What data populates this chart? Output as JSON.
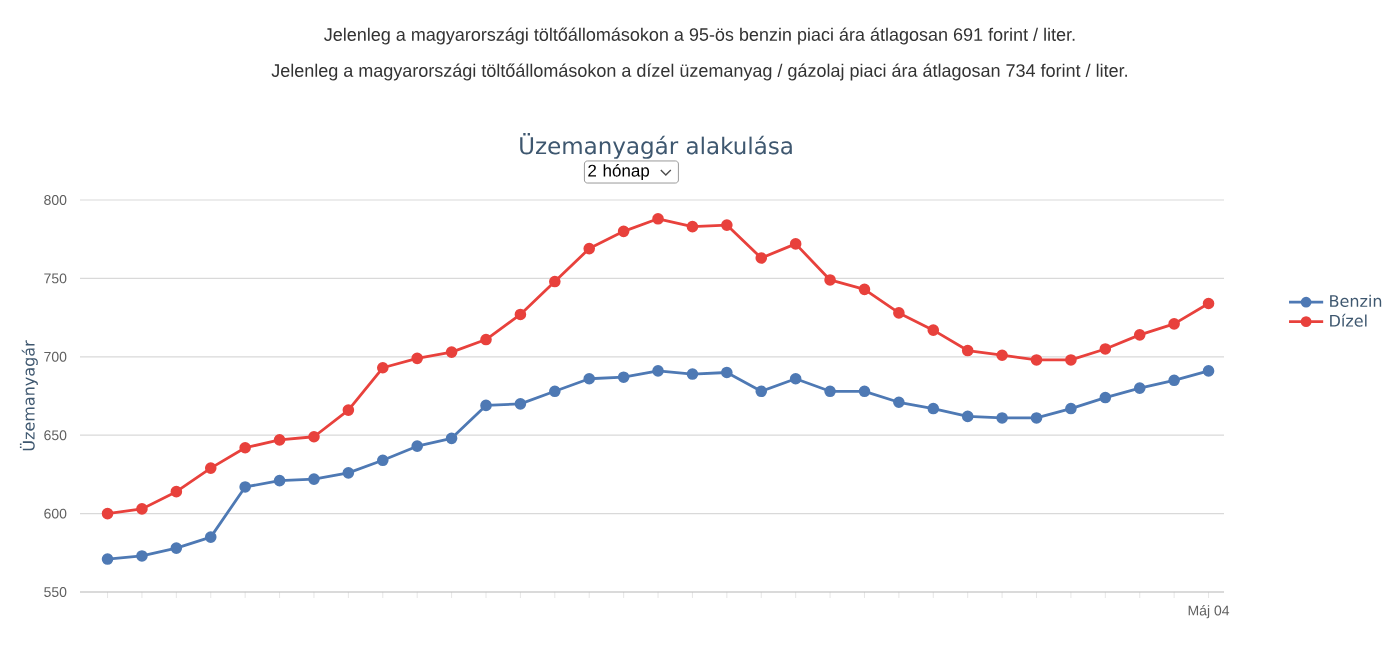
{
  "chart_data": {
    "type": "line",
    "title": "Üzemanyagár alakulása",
    "ylabel": "Üzemanyagár",
    "annotations": [
      "Jelenleg a magyarországi töltőállomásokon a 95-ös benzin piaci ára átlagosan 691 forint / liter.",
      "Jelenleg a magyarországi töltőállomásokon a dízel üzemanyag / gázolaj piaci ára átlagosan 734 forint / liter.",
      "2 hónap"
    ],
    "categories": [
      null,
      null,
      null,
      null,
      null,
      null,
      null,
      null,
      null,
      null,
      null,
      null,
      null,
      null,
      null,
      null,
      null,
      null,
      null,
      null,
      null,
      null,
      null,
      null,
      null,
      null,
      null,
      null,
      null,
      null,
      null,
      null,
      "Máj 04"
    ],
    "series": [
      {
        "name": "Benzin",
        "color": "#4e79b4",
        "values": [
          571,
          573,
          578,
          585,
          617,
          621,
          622,
          626,
          634,
          643,
          648,
          669,
          670,
          678,
          686,
          687,
          691,
          689,
          690,
          678,
          686,
          678,
          678,
          671,
          667,
          662,
          661,
          661,
          667,
          674,
          680,
          685,
          691
        ]
      },
      {
        "name": "Dízel",
        "color": "#e8413c",
        "values": [
          600,
          603,
          614,
          629,
          642,
          647,
          649,
          666,
          693,
          699,
          703,
          711,
          727,
          748,
          769,
          780,
          788,
          783,
          784,
          763,
          772,
          749,
          743,
          728,
          717,
          704,
          701,
          698,
          698,
          705,
          714,
          721,
          734
        ]
      }
    ],
    "ylim": [
      550,
      800
    ],
    "yticks": [
      550,
      600,
      650,
      700,
      750,
      800
    ],
    "grid": "y",
    "legend": "right",
    "marker": "circle",
    "line_style": "solid"
  }
}
